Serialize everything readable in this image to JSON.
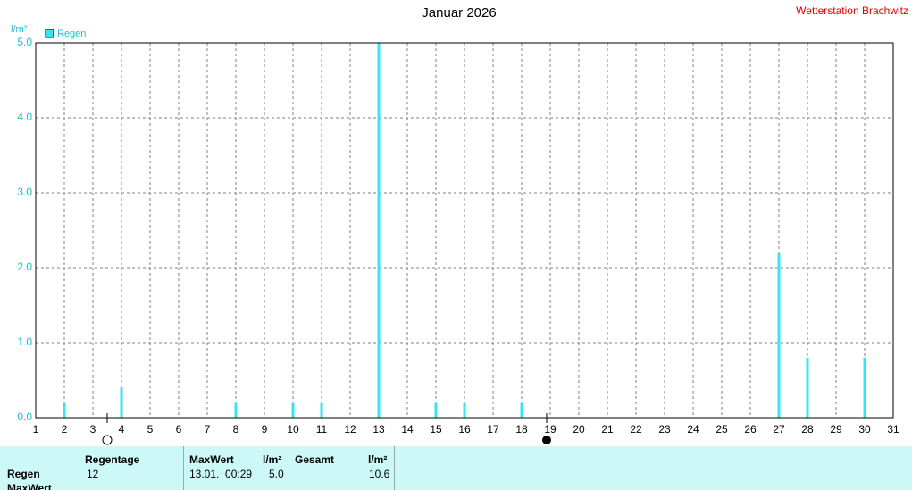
{
  "chart_data": {
    "type": "bar",
    "title": "Januar 2026",
    "station": "Wetterstation Brachwitz",
    "y_label": "l/m²",
    "legend": "Regen",
    "color": "#33e6f0",
    "x": [
      2,
      4,
      8,
      10,
      11,
      13,
      15,
      16,
      18,
      27,
      28,
      30
    ],
    "values": [
      0.2,
      0.4,
      0.2,
      0.2,
      0.2,
      5.0,
      0.2,
      0.2,
      0.2,
      2.2,
      0.8,
      0.8
    ],
    "xlim": [
      1,
      31
    ],
    "xticks": [
      1,
      2,
      3,
      4,
      5,
      6,
      7,
      8,
      9,
      10,
      11,
      12,
      13,
      14,
      15,
      16,
      17,
      18,
      19,
      20,
      21,
      22,
      23,
      24,
      25,
      26,
      27,
      28,
      29,
      30,
      31
    ],
    "ylim": [
      0,
      5
    ],
    "yticks": [
      {
        "value": 0,
        "label": "0.0"
      },
      {
        "value": 1,
        "label": "1.0"
      },
      {
        "value": 2,
        "label": "2.0"
      },
      {
        "value": 3,
        "label": "3.0"
      },
      {
        "value": 4,
        "label": "4.0"
      },
      {
        "value": 5,
        "label": "5.0"
      }
    ],
    "grid": true
  },
  "table": {
    "headers": [
      "Regentage",
      "MaxWert",
      "l/m²",
      "Gesamt",
      "l/m²"
    ],
    "rows": [
      [
        "Regen",
        "12",
        "13.01.  00:29",
        "5.0",
        "10.6"
      ],
      [
        "MaxWert"
      ]
    ]
  }
}
